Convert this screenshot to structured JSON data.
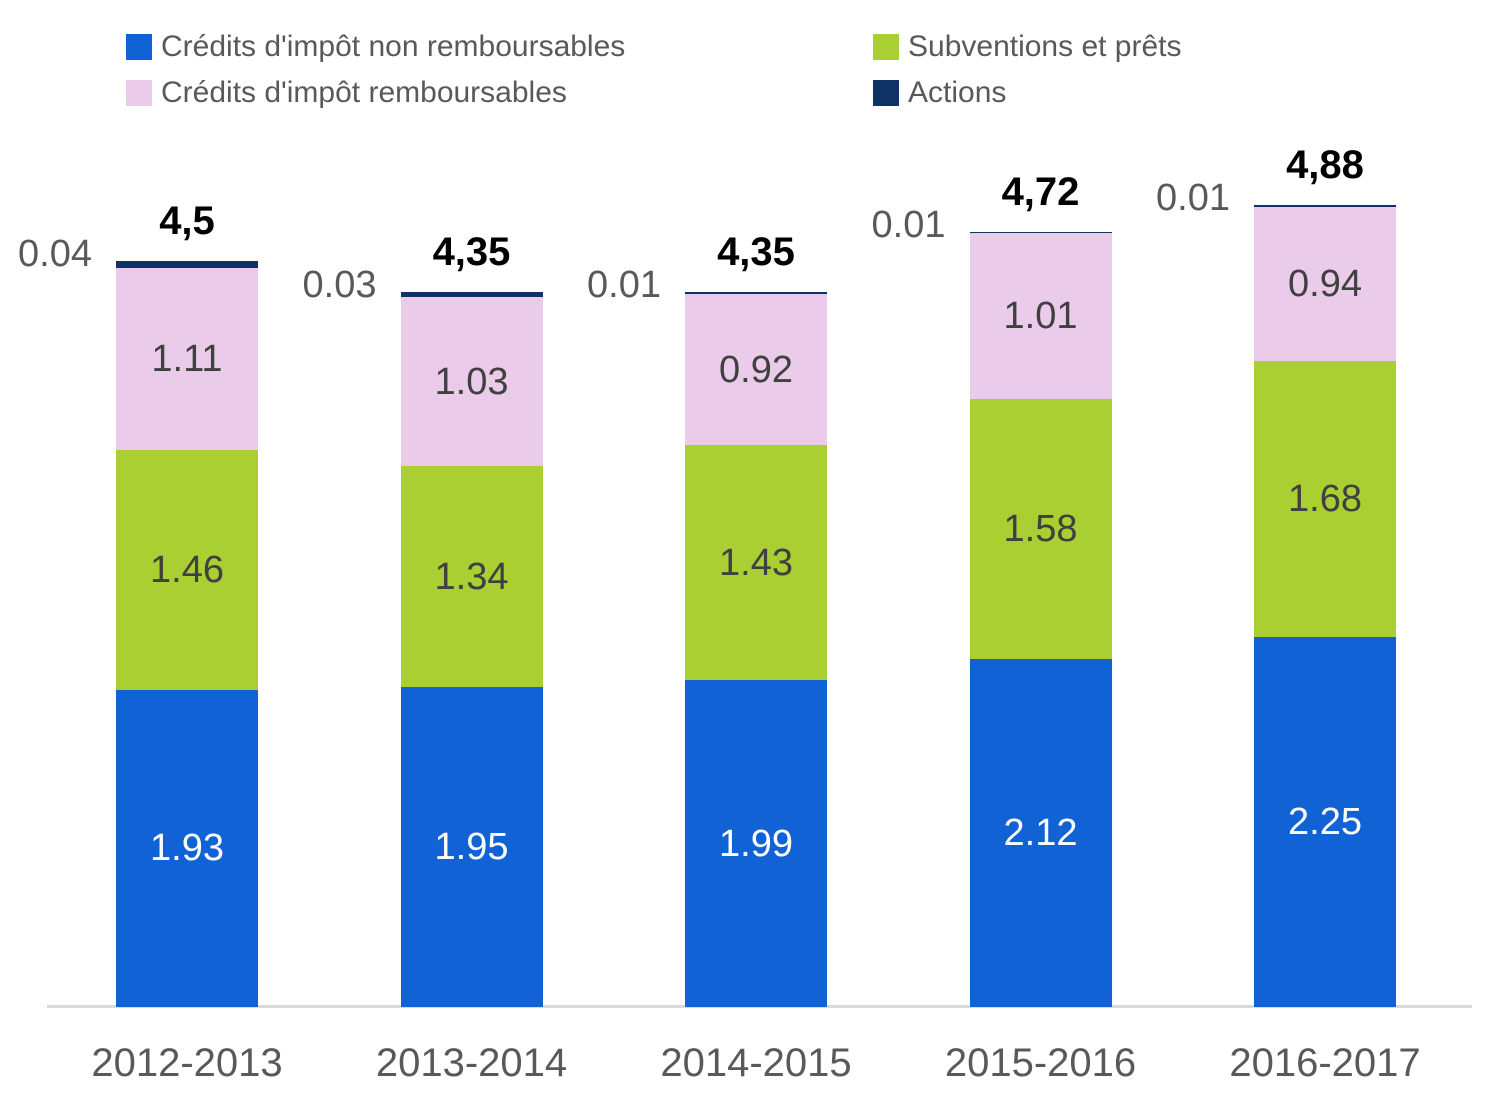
{
  "chart_data": {
    "type": "bar",
    "stacked": true,
    "orientation": "vertical",
    "grid": false,
    "legend_position": "top",
    "ylim": [
      0,
      5
    ],
    "xlabel": "",
    "ylabel": "",
    "categories": [
      "2012-2013",
      "2013-2014",
      "2014-2015",
      "2015-2016",
      "2016-2017"
    ],
    "series": [
      {
        "name": "Crédits d'impôt non remboursables",
        "color": "#1163D5",
        "label_color": "#FFFFFF",
        "label_placement": "inside",
        "values": [
          1.93,
          1.95,
          1.99,
          2.12,
          2.25
        ],
        "labels": [
          "1.93",
          "1.95",
          "1.99",
          "2.12",
          "2.25"
        ]
      },
      {
        "name": "Subventions et prêts",
        "color": "#A9CF33",
        "label_color": "#404040",
        "label_placement": "inside",
        "values": [
          1.46,
          1.34,
          1.43,
          1.58,
          1.68
        ],
        "labels": [
          "1.46",
          "1.34",
          "1.43",
          "1.58",
          "1.68"
        ]
      },
      {
        "name": "Crédits d'impôt remboursables",
        "color": "#EACBE9",
        "label_color": "#404040",
        "label_placement": "inside",
        "values": [
          1.11,
          1.03,
          0.92,
          1.01,
          0.94
        ],
        "labels": [
          "1.11",
          "1.03",
          "0.92",
          "1.01",
          "0.94"
        ]
      },
      {
        "name": "Actions",
        "color": "#103163",
        "label_color": "#595959",
        "label_placement": "outside-left",
        "values": [
          0.04,
          0.03,
          0.01,
          0.01,
          0.01
        ],
        "labels": [
          "0.04",
          "0.03",
          "0.01",
          "0.01",
          "0.01"
        ]
      }
    ],
    "totals": [
      "4,5",
      "4,35",
      "4,35",
      "4,72",
      "4,88"
    ]
  },
  "style": {
    "axis_line_color": "#D9D9D9",
    "axis_text_color": "#595959",
    "total_text_color": "#000000"
  }
}
